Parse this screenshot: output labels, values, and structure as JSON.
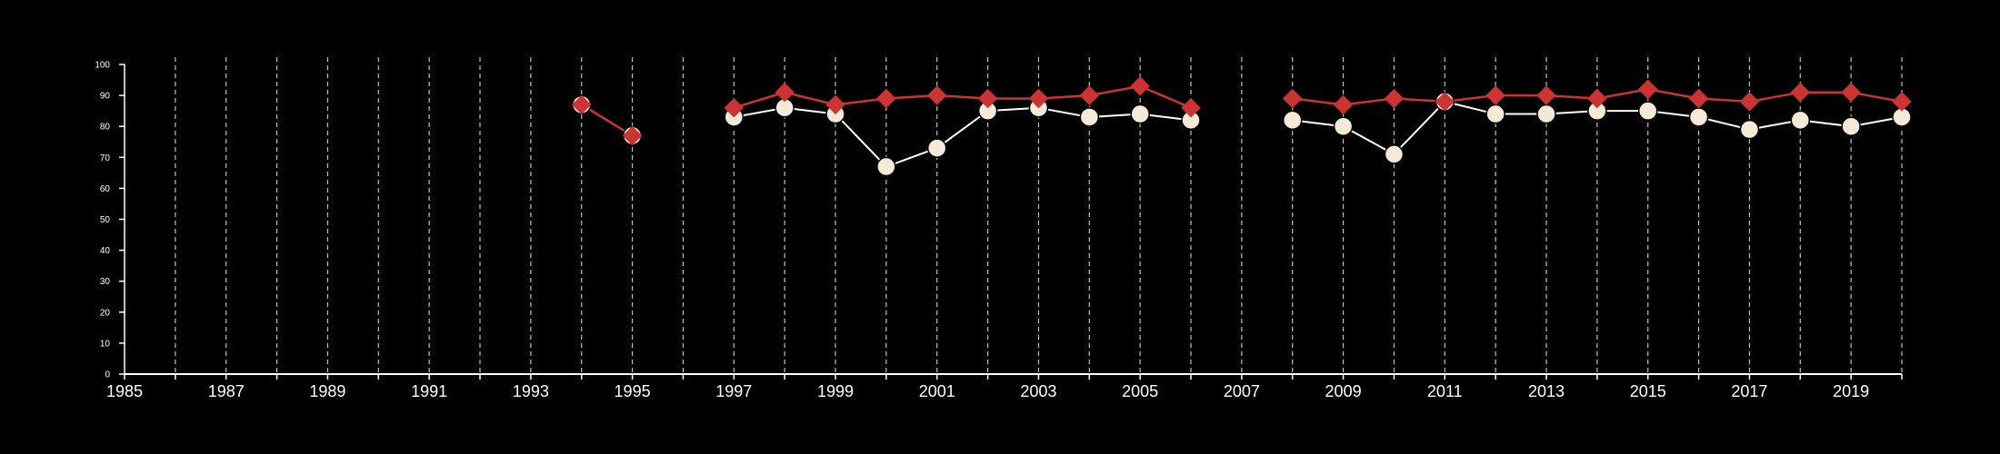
{
  "chart_data": {
    "type": "line",
    "title": "",
    "xlabel": "",
    "ylabel": "",
    "xlim": [
      1985,
      2020
    ],
    "ylim": [
      0,
      100
    ],
    "x_ticks": [
      1985,
      1987,
      1989,
      1991,
      1993,
      1995,
      1997,
      1999,
      2001,
      2003,
      2005,
      2007,
      2009,
      2011,
      2013,
      2015,
      2017,
      2019
    ],
    "y_ticks": [
      0,
      10,
      20,
      30,
      40,
      50,
      60,
      70,
      80,
      90,
      100
    ],
    "vertical_gridlines_years": [
      1986,
      1987,
      1988,
      1989,
      1990,
      1991,
      1992,
      1993,
      1994,
      1995,
      1996,
      1997,
      1998,
      1999,
      2000,
      2001,
      2002,
      2003,
      2004,
      2005,
      2006,
      2007,
      2008,
      2009,
      2010,
      2011,
      2012,
      2013,
      2014,
      2015,
      2016,
      2017,
      2018,
      2019,
      2020
    ],
    "grid": "vertical-dashed",
    "legend": "none",
    "colors": {
      "background": "#000000",
      "axis": "#ffffff",
      "grid": "#bfbfbf",
      "series_red": "#cc3333",
      "series_cream": "#f5ead8",
      "cream_line": "#ffffff"
    },
    "series": [
      {
        "marker": "circle",
        "color": "#f5ead8",
        "x": [
          1994,
          1995,
          null,
          1997,
          1998,
          1999,
          2000,
          2001,
          2002,
          2003,
          2004,
          2005,
          2006,
          null,
          2008,
          2009,
          2010,
          2011,
          2012,
          2013,
          2014,
          2015,
          2016,
          2017,
          2018,
          2019,
          2020
        ],
        "values": [
          87,
          77,
          null,
          83,
          86,
          84,
          67,
          73,
          85,
          86,
          83,
          84,
          82,
          null,
          82,
          80,
          71,
          88,
          84,
          84,
          85,
          85,
          83,
          79,
          82,
          80,
          83
        ]
      },
      {
        "marker": "diamond",
        "color": "#cc3333",
        "x": [
          1994,
          1995,
          null,
          1997,
          1998,
          1999,
          2000,
          2001,
          2002,
          2003,
          2004,
          2005,
          2006,
          null,
          2008,
          2009,
          2010,
          2011,
          2012,
          2013,
          2014,
          2015,
          2016,
          2017,
          2018,
          2019,
          2020
        ],
        "values": [
          87,
          77,
          null,
          86,
          91,
          87,
          89,
          90,
          89,
          89,
          90,
          93,
          86,
          null,
          89,
          87,
          89,
          88,
          90,
          90,
          89,
          92,
          89,
          88,
          91,
          91,
          88
        ]
      }
    ]
  }
}
